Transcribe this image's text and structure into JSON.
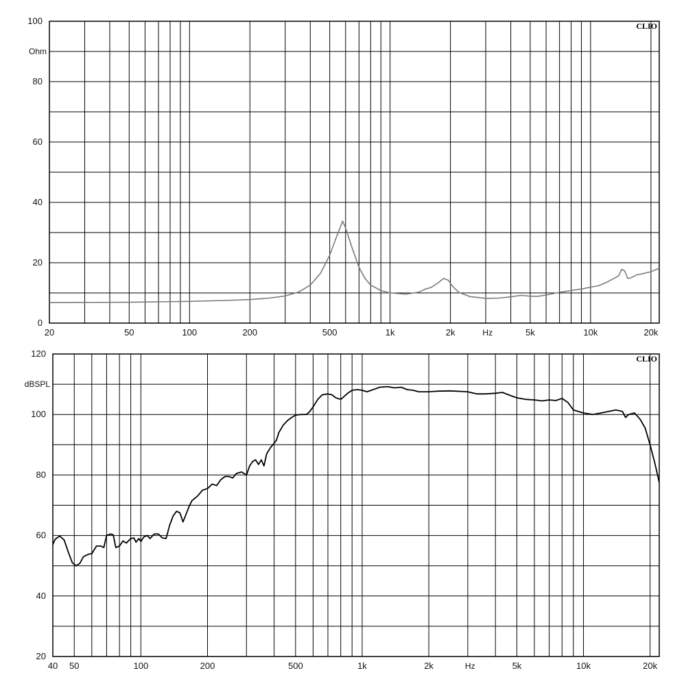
{
  "chart_data": [
    {
      "type": "line",
      "scale": "log-x",
      "brand": "CLIO",
      "y_unit": "Ohm",
      "x_unit": "Hz",
      "xlim": [
        20,
        22000
      ],
      "ylim": [
        0,
        100
      ],
      "y_ticks": [
        0,
        20,
        40,
        60,
        80,
        100
      ],
      "y_grid_step": 10,
      "x_grid": [
        30,
        40,
        50,
        60,
        70,
        80,
        90,
        100,
        200,
        300,
        400,
        500,
        600,
        700,
        800,
        900,
        1000,
        2000,
        3000,
        4000,
        5000,
        6000,
        7000,
        8000,
        9000,
        10000,
        20000
      ],
      "x_tick_labels": [
        {
          "x": 20,
          "label": "20"
        },
        {
          "x": 50,
          "label": "50"
        },
        {
          "x": 100,
          "label": "100"
        },
        {
          "x": 200,
          "label": "200"
        },
        {
          "x": 500,
          "label": "500"
        },
        {
          "x": 1000,
          "label": "1k"
        },
        {
          "x": 2000,
          "label": "2k"
        },
        {
          "x": 5000,
          "label": "5k"
        },
        {
          "x": 10000,
          "label": "10k"
        },
        {
          "x": 20000,
          "label": "20k"
        }
      ],
      "line_color": "#7a7a7a",
      "series": [
        {
          "points": [
            [
              20,
              6.8
            ],
            [
              50,
              6.9
            ],
            [
              100,
              7.2
            ],
            [
              150,
              7.5
            ],
            [
              200,
              7.8
            ],
            [
              250,
              8.3
            ],
            [
              300,
              9.0
            ],
            [
              350,
              10.3
            ],
            [
              400,
              12.6
            ],
            [
              450,
              16.5
            ],
            [
              500,
              22.5
            ],
            [
              540,
              28.5
            ],
            [
              570,
              32.5
            ],
            [
              580,
              33.8
            ],
            [
              600,
              31.5
            ],
            [
              650,
              24.5
            ],
            [
              700,
              18.5
            ],
            [
              750,
              14.8
            ],
            [
              800,
              12.6
            ],
            [
              900,
              10.8
            ],
            [
              1000,
              10.0
            ],
            [
              1200,
              9.6
            ],
            [
              1400,
              10.3
            ],
            [
              1500,
              11.3
            ],
            [
              1600,
              11.8
            ],
            [
              1750,
              13.5
            ],
            [
              1850,
              14.8
            ],
            [
              1950,
              14.2
            ],
            [
              2050,
              12.2
            ],
            [
              2200,
              10.2
            ],
            [
              2500,
              8.8
            ],
            [
              3000,
              8.2
            ],
            [
              3500,
              8.3
            ],
            [
              4000,
              8.7
            ],
            [
              4500,
              9.2
            ],
            [
              5000,
              8.9
            ],
            [
              5500,
              8.9
            ],
            [
              6000,
              9.3
            ],
            [
              7000,
              10.2
            ],
            [
              8000,
              10.8
            ],
            [
              9000,
              11.3
            ],
            [
              10000,
              11.9
            ],
            [
              11000,
              12.4
            ],
            [
              12000,
              13.5
            ],
            [
              13000,
              14.7
            ],
            [
              13800,
              15.7
            ],
            [
              14300,
              17.8
            ],
            [
              14800,
              17.3
            ],
            [
              15300,
              14.8
            ],
            [
              16000,
              15.1
            ],
            [
              17000,
              16.0
            ],
            [
              18000,
              16.3
            ],
            [
              19000,
              16.7
            ],
            [
              20000,
              17.0
            ],
            [
              22000,
              18.2
            ]
          ]
        }
      ]
    },
    {
      "type": "line",
      "scale": "log-x",
      "brand": "CLIO",
      "y_unit": "dBSPL",
      "x_unit": "Hz",
      "xlim": [
        40,
        22000
      ],
      "ylim": [
        20,
        120
      ],
      "y_ticks": [
        20,
        40,
        60,
        80,
        100,
        120
      ],
      "y_grid_step": 10,
      "x_grid": [
        50,
        60,
        70,
        80,
        90,
        100,
        200,
        300,
        400,
        500,
        600,
        700,
        800,
        900,
        1000,
        2000,
        3000,
        4000,
        5000,
        6000,
        7000,
        8000,
        9000,
        10000,
        20000
      ],
      "x_tick_labels": [
        {
          "x": 40,
          "label": "40"
        },
        {
          "x": 50,
          "label": "50"
        },
        {
          "x": 100,
          "label": "100"
        },
        {
          "x": 200,
          "label": "200"
        },
        {
          "x": 500,
          "label": "500"
        },
        {
          "x": 1000,
          "label": "1k"
        },
        {
          "x": 2000,
          "label": "2k"
        },
        {
          "x": 5000,
          "label": "5k"
        },
        {
          "x": 10000,
          "label": "10k"
        },
        {
          "x": 20000,
          "label": "20k"
        }
      ],
      "line_color": "#000000",
      "series": [
        {
          "points": [
            [
              40,
              57.0
            ],
            [
              41,
              58.8
            ],
            [
              43,
              59.8
            ],
            [
              45,
              58.5
            ],
            [
              47,
              54.5
            ],
            [
              49,
              51.0
            ],
            [
              51,
              50.0
            ],
            [
              53,
              50.8
            ],
            [
              55,
              53.0
            ],
            [
              58,
              53.8
            ],
            [
              60,
              54.0
            ],
            [
              63,
              56.5
            ],
            [
              66,
              56.5
            ],
            [
              68,
              56.0
            ],
            [
              70,
              60.0
            ],
            [
              73,
              60.5
            ],
            [
              75,
              60.2
            ],
            [
              77,
              56.0
            ],
            [
              80,
              56.5
            ],
            [
              83,
              58.2
            ],
            [
              86,
              57.5
            ],
            [
              90,
              59.0
            ],
            [
              93,
              59.2
            ],
            [
              95,
              57.8
            ],
            [
              98,
              59.0
            ],
            [
              100,
              58.0
            ],
            [
              103,
              59.5
            ],
            [
              107,
              60.0
            ],
            [
              110,
              59.0
            ],
            [
              115,
              60.5
            ],
            [
              120,
              60.5
            ],
            [
              125,
              59.2
            ],
            [
              130,
              59.0
            ],
            [
              135,
              63.5
            ],
            [
              140,
              66.5
            ],
            [
              145,
              68.0
            ],
            [
              150,
              67.5
            ],
            [
              155,
              64.5
            ],
            [
              160,
              67.0
            ],
            [
              165,
              69.5
            ],
            [
              170,
              71.5
            ],
            [
              180,
              73.0
            ],
            [
              190,
              75.0
            ],
            [
              200,
              75.5
            ],
            [
              210,
              77.0
            ],
            [
              220,
              76.5
            ],
            [
              230,
              78.5
            ],
            [
              240,
              79.5
            ],
            [
              250,
              79.5
            ],
            [
              260,
              79.0
            ],
            [
              270,
              80.5
            ],
            [
              285,
              81.0
            ],
            [
              300,
              80.0
            ],
            [
              310,
              83.0
            ],
            [
              320,
              84.5
            ],
            [
              330,
              85.0
            ],
            [
              340,
              83.5
            ],
            [
              350,
              85.0
            ],
            [
              360,
              83.0
            ],
            [
              370,
              87.0
            ],
            [
              385,
              89.0
            ],
            [
              400,
              90.5
            ],
            [
              410,
              91.5
            ],
            [
              420,
              94.0
            ],
            [
              440,
              96.5
            ],
            [
              460,
              98.0
            ],
            [
              480,
              99.0
            ],
            [
              500,
              99.8
            ],
            [
              530,
              100.0
            ],
            [
              560,
              100.0
            ],
            [
              580,
              101.0
            ],
            [
              600,
              102.5
            ],
            [
              630,
              105.0
            ],
            [
              660,
              106.5
            ],
            [
              700,
              106.8
            ],
            [
              730,
              106.5
            ],
            [
              760,
              105.5
            ],
            [
              800,
              105.0
            ],
            [
              830,
              106.0
            ],
            [
              860,
              107.0
            ],
            [
              900,
              108.0
            ],
            [
              950,
              108.2
            ],
            [
              1000,
              108.0
            ],
            [
              1050,
              107.5
            ],
            [
              1100,
              108.0
            ],
            [
              1150,
              108.5
            ],
            [
              1200,
              109.0
            ],
            [
              1300,
              109.2
            ],
            [
              1400,
              108.8
            ],
            [
              1500,
              109.0
            ],
            [
              1600,
              108.2
            ],
            [
              1700,
              108.0
            ],
            [
              1800,
              107.5
            ],
            [
              2000,
              107.5
            ],
            [
              2200,
              107.7
            ],
            [
              2500,
              107.8
            ],
            [
              3000,
              107.5
            ],
            [
              3300,
              106.8
            ],
            [
              3600,
              106.8
            ],
            [
              4000,
              107.0
            ],
            [
              4300,
              107.3
            ],
            [
              4700,
              106.2
            ],
            [
              5000,
              105.5
            ],
            [
              5500,
              105.0
            ],
            [
              6000,
              104.8
            ],
            [
              6500,
              104.5
            ],
            [
              7000,
              104.8
            ],
            [
              7500,
              104.6
            ],
            [
              8000,
              105.3
            ],
            [
              8500,
              104.0
            ],
            [
              9000,
              101.5
            ],
            [
              10000,
              100.5
            ],
            [
              11000,
              100.0
            ],
            [
              12000,
              100.5
            ],
            [
              13000,
              101.0
            ],
            [
              14000,
              101.5
            ],
            [
              15000,
              101.0
            ],
            [
              15500,
              99.0
            ],
            [
              16000,
              100.0
            ],
            [
              17000,
              100.5
            ],
            [
              18000,
              98.5
            ],
            [
              19000,
              95.5
            ],
            [
              20000,
              90.0
            ],
            [
              21000,
              84.0
            ],
            [
              22000,
              77.5
            ]
          ]
        }
      ]
    }
  ]
}
